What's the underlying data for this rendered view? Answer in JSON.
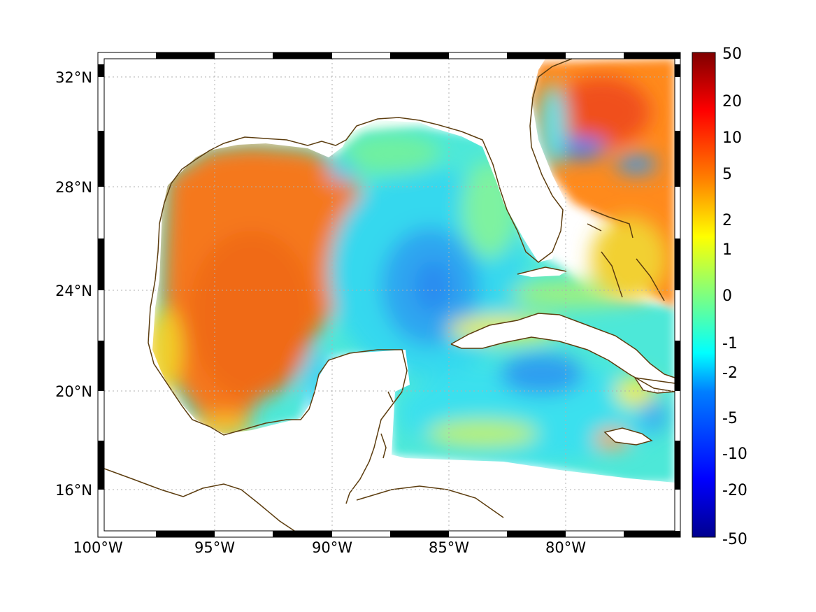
{
  "map": {
    "projection": "Mercator",
    "extent": {
      "lon_west": -100,
      "lon_east": -75,
      "lat_south": 14.3,
      "lat_north": 33
    },
    "grid": true,
    "lon_ticks": [
      {
        "value": -100,
        "label": "100°W"
      },
      {
        "value": -95,
        "label": "95°W"
      },
      {
        "value": -90,
        "label": "90°W"
      },
      {
        "value": -85,
        "label": "85°W"
      },
      {
        "value": -80,
        "label": "80°W"
      }
    ],
    "lat_ticks": [
      {
        "value": 32,
        "label": "32°N"
      },
      {
        "value": 28,
        "label": "28°N"
      },
      {
        "value": 24,
        "label": "24°N"
      },
      {
        "value": 20,
        "label": "20°N"
      },
      {
        "value": 16,
        "label": "16°N"
      }
    ],
    "coastline_color": "#5c3d0f",
    "field_regions": [
      {
        "name": "western-gulf",
        "color": "#f08a1c",
        "range": "5 to 10"
      },
      {
        "name": "central-gulf",
        "color": "#2ea8f2",
        "range": "-2 to -5"
      },
      {
        "name": "caribbean",
        "color": "#36e2f0",
        "range": "-1 to -2"
      },
      {
        "name": "atlantic-north",
        "color": "#ff7a16",
        "range": "5 to 10"
      }
    ]
  },
  "colorbar": {
    "labels": [
      "50",
      "20",
      "10",
      "5",
      "2",
      "1",
      "0",
      "-1",
      "-2",
      "-5",
      "-10",
      "-20",
      "-50"
    ],
    "colormap": "jet"
  }
}
